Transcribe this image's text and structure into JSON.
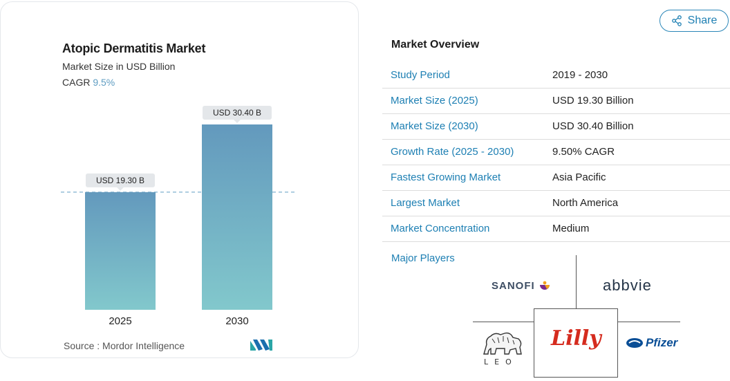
{
  "chart": {
    "title": "Atopic Dermatitis Market",
    "subtitle": "Market Size in USD Billion",
    "cagr_label": "CAGR",
    "cagr_value": "9.5%",
    "source": "Source :  Mordor Intelligence",
    "bar_labels": [
      "USD 19.30 B",
      "USD 30.40 B"
    ]
  },
  "chart_data": {
    "type": "bar",
    "title": "Atopic Dermatitis Market",
    "subtitle": "Market Size in USD Billion",
    "categories": [
      "2025",
      "2030"
    ],
    "values": [
      19.3,
      30.4
    ],
    "data_labels": [
      "USD 19.30 B",
      "USD 30.40 B"
    ],
    "ylim": [
      0,
      32
    ],
    "reference_line": 19.3,
    "grid": false,
    "colors": {
      "bar_top": "#6399bd",
      "bar_bottom": "#82c8cc",
      "label_bg": "#e4e7ea",
      "ref_line": "#5f9dc2"
    }
  },
  "share": {
    "label": "Share",
    "icon": "share-icon"
  },
  "overview": {
    "title": "Market Overview",
    "rows": [
      {
        "label": "Study Period",
        "value": "2019 - 2030"
      },
      {
        "label": "Market Size (2025)",
        "value": "USD 19.30 Billion"
      },
      {
        "label": "Market Size (2030)",
        "value": "USD 30.40 Billion"
      },
      {
        "label": "Growth Rate (2025 - 2030)",
        "value": "9.50% CAGR"
      },
      {
        "label": "Fastest Growing Market",
        "value": "Asia Pacific"
      },
      {
        "label": "Largest Market",
        "value": "North America"
      },
      {
        "label": "Market Concentration",
        "value": "Medium"
      }
    ],
    "players_label": "Major Players",
    "players": {
      "sanofi": "SANOFI",
      "abbvie": "abbvie",
      "lilly": "Lilly",
      "pfizer": "Pfizer",
      "leo": "LEO"
    }
  },
  "colors": {
    "accent": "#1d7fb3",
    "border": "#dcdcdc"
  }
}
